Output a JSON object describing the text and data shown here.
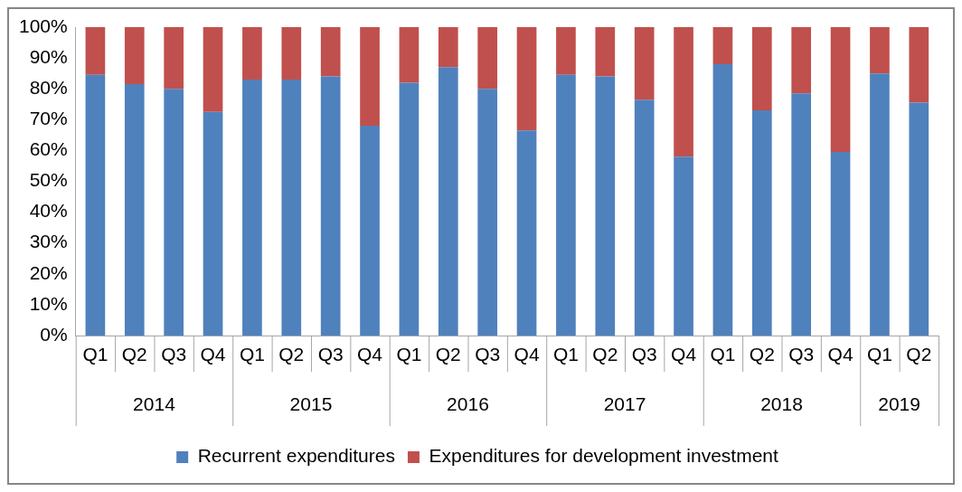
{
  "chart_data": {
    "type": "bar",
    "stacked": true,
    "categories": [
      "Q1",
      "Q2",
      "Q3",
      "Q4",
      "Q1",
      "Q2",
      "Q3",
      "Q4",
      "Q1",
      "Q2",
      "Q3",
      "Q4",
      "Q1",
      "Q2",
      "Q3",
      "Q4",
      "Q1",
      "Q2",
      "Q3",
      "Q4",
      "Q1",
      "Q2"
    ],
    "series": [
      {
        "name": "Recurrent expenditures",
        "color": "#4f81bd",
        "values": [
          84.5,
          81.5,
          80,
          72.5,
          83,
          83,
          84,
          68,
          82,
          87,
          80,
          66.5,
          84.5,
          84,
          76.5,
          58,
          88,
          73,
          78.5,
          59.5,
          85,
          75.5
        ]
      },
      {
        "name": "Expenditures for development investment",
        "color": "#c0504d",
        "values": [
          15.5,
          18.5,
          20,
          27.5,
          17,
          17,
          16,
          32,
          18,
          13,
          20,
          33.5,
          15.5,
          16,
          23.5,
          42,
          12,
          27,
          21.5,
          40.5,
          15,
          24.5
        ]
      }
    ],
    "ylim": [
      0,
      100
    ],
    "yticks": [
      {
        "value": 0,
        "label": "0%"
      },
      {
        "value": 10,
        "label": "10%"
      },
      {
        "value": 20,
        "label": "20%"
      },
      {
        "value": 30,
        "label": "30%"
      },
      {
        "value": 40,
        "label": "40%"
      },
      {
        "value": 50,
        "label": "50%"
      },
      {
        "value": 60,
        "label": "60%"
      },
      {
        "value": 70,
        "label": "70%"
      },
      {
        "value": 80,
        "label": "80%"
      },
      {
        "value": 90,
        "label": "90%"
      },
      {
        "value": 100,
        "label": "100%"
      }
    ],
    "grid": false,
    "legend": "bottom",
    "annotations": [
      "2014",
      "2015",
      "2016",
      "2017",
      "2018",
      "2019"
    ]
  }
}
